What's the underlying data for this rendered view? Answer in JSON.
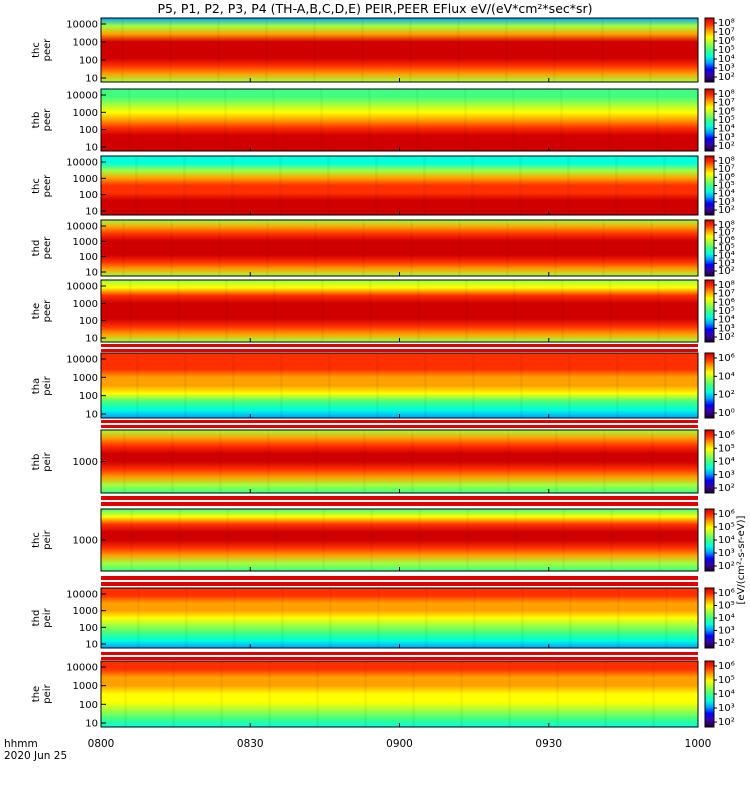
{
  "title": "P5, P1, P2, P3, P4 (TH-A,B,C,D,E) PEIR,PEER EFlux eV/(eV*cm²*sec*sr)",
  "footer": {
    "hhmm": "hhmm",
    "date": "2020 Jun 25"
  },
  "colorbar_text": "[eV/(cm²-s-sr-eV)]",
  "chart_data": {
    "type": "heatmap",
    "x": {
      "ticks": [
        "0800",
        "0830",
        "0900",
        "0930",
        "1000"
      ]
    },
    "colormap": [
      "#1a0033",
      "#3a00a0",
      "#0000ff",
      "#00a0ff",
      "#00ffdd",
      "#40ff80",
      "#a0ff40",
      "#ffff00",
      "#ffa000",
      "#ff3000",
      "#d00000"
    ],
    "panels": [
      {
        "label1": "thc",
        "label2": "peer",
        "y_ticks": [
          "10",
          "100",
          "1000",
          "10000"
        ],
        "cbar_ticks": [
          "10²",
          "10³",
          "10⁴",
          "10⁵",
          "10⁶",
          "10⁷",
          "10⁸"
        ],
        "bands": [
          0.25,
          0.55,
          0.82,
          0.95,
          1.0,
          0.97,
          0.9,
          0.75,
          0.55
        ]
      },
      {
        "label1": "thb",
        "label2": "peer",
        "y_ticks": [
          "10",
          "100",
          "1000",
          "10000"
        ],
        "cbar_ticks": [
          "10²",
          "10³",
          "10⁴",
          "10⁵",
          "10⁶",
          "10⁷",
          "10⁸"
        ],
        "bands": [
          0.45,
          0.5,
          0.62,
          0.72,
          0.8,
          0.9,
          0.97,
          1.0,
          1.0
        ]
      },
      {
        "label1": "thc",
        "label2": "peer",
        "y_ticks": [
          "10",
          "100",
          "1000",
          "10000"
        ],
        "cbar_ticks": [
          "10²",
          "10³",
          "10⁴",
          "10⁵",
          "10⁶",
          "10⁷",
          "10⁸"
        ],
        "bands": [
          0.38,
          0.35,
          0.58,
          0.75,
          0.85,
          0.93,
          1.0,
          1.0,
          1.0
        ]
      },
      {
        "label1": "thd",
        "label2": "peer",
        "y_ticks": [
          "10",
          "100",
          "1000",
          "10000"
        ],
        "cbar_ticks": [
          "10²",
          "10³",
          "10⁴",
          "10⁵",
          "10⁶",
          "10⁷",
          "10⁸"
        ],
        "bands": [
          0.6,
          0.75,
          0.88,
          0.97,
          1.0,
          0.95,
          0.88,
          0.78,
          0.6
        ]
      },
      {
        "label1": "the",
        "label2": "peer",
        "y_ticks": [
          "10",
          "100",
          "1000",
          "10000"
        ],
        "cbar_ticks": [
          "10²",
          "10³",
          "10⁴",
          "10⁵",
          "10⁶",
          "10⁷",
          "10⁸"
        ],
        "bands": [
          0.55,
          0.72,
          0.85,
          0.96,
          1.0,
          0.96,
          0.88,
          0.75,
          0.6
        ]
      },
      {
        "label1": "tha",
        "label2": "peir",
        "y_ticks": [
          "10",
          "100",
          "1000",
          "10000"
        ],
        "cbar_ticks": [
          "10⁰",
          "10²",
          "10⁴",
          "10⁶"
        ],
        "bands": [
          0.9,
          0.9,
          0.85,
          0.8,
          0.75,
          0.65,
          0.52,
          0.42,
          0.3
        ]
      },
      {
        "label1": "thb",
        "label2": "peir",
        "y_ticks": [
          "1000"
        ],
        "cbar_ticks": [
          "10²",
          "10³",
          "10⁴",
          "10⁵",
          "10⁶"
        ],
        "bands": [
          0.55,
          0.75,
          0.88,
          0.97,
          1.0,
          0.93,
          0.78,
          0.6,
          0.5
        ]
      },
      {
        "label1": "thc",
        "label2": "peir",
        "y_ticks": [
          "1000"
        ],
        "cbar_ticks": [
          "10²",
          "10³",
          "10⁴",
          "10⁵",
          "10⁶"
        ],
        "bands": [
          0.5,
          0.7,
          0.85,
          0.95,
          1.0,
          0.93,
          0.78,
          0.6,
          0.45
        ]
      },
      {
        "label1": "thd",
        "label2": "peir",
        "y_ticks": [
          "10",
          "100",
          "1000",
          "10000"
        ],
        "cbar_ticks": [
          "10²",
          "10³",
          "10⁴",
          "10⁵",
          "10⁶"
        ],
        "bands": [
          0.85,
          0.85,
          0.8,
          0.78,
          0.7,
          0.6,
          0.45,
          0.35,
          0.25
        ]
      },
      {
        "label1": "the",
        "label2": "peir",
        "y_ticks": [
          "10",
          "100",
          "1000",
          "10000"
        ],
        "cbar_ticks": [
          "10²",
          "10³",
          "10⁴",
          "10⁵",
          "10⁶"
        ],
        "bands": [
          0.85,
          0.85,
          0.82,
          0.78,
          0.72,
          0.65,
          0.55,
          0.45,
          0.35
        ]
      }
    ]
  }
}
